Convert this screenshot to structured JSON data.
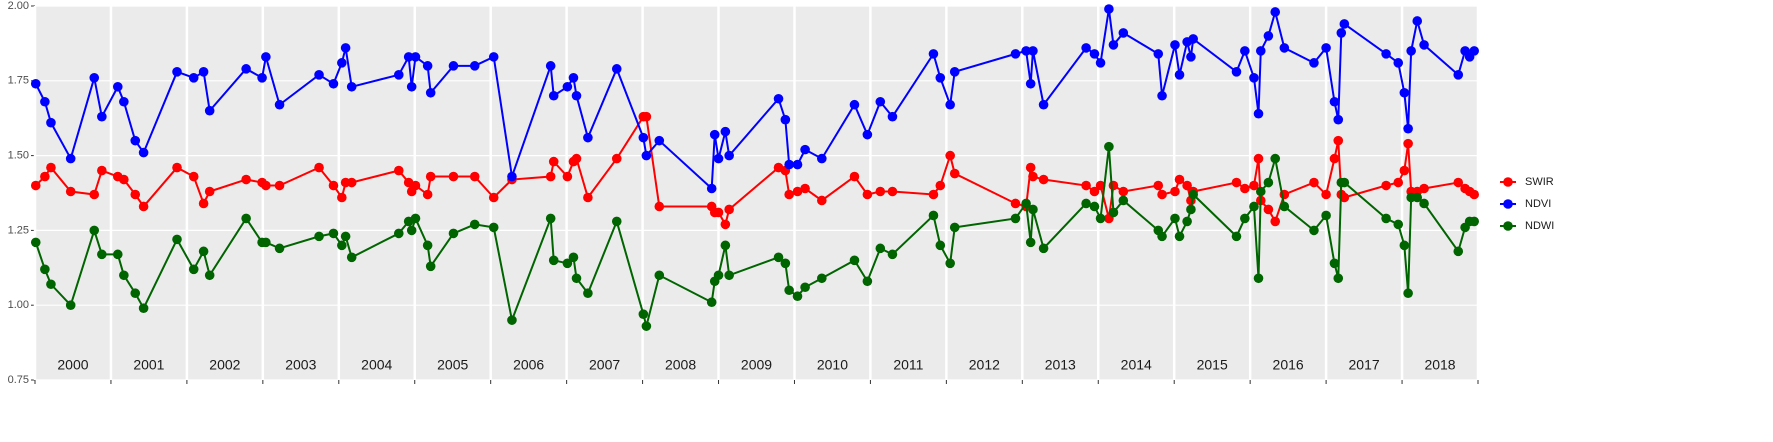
{
  "chart_data": {
    "type": "line",
    "x": [
      2000.01,
      2000.13,
      2000.21,
      2000.47,
      2000.78,
      2000.88,
      2001.09,
      2001.17,
      2001.32,
      2001.43,
      2001.87,
      2002.09,
      2002.22,
      2002.3,
      2002.78,
      2002.99,
      2003.04,
      2003.22,
      2003.74,
      2003.93,
      2004.04,
      2004.09,
      2004.17,
      2004.79,
      2004.92,
      2004.96,
      2005.01,
      2005.17,
      2005.21,
      2005.51,
      2005.79,
      2006.04,
      2006.28,
      2006.79,
      2006.83,
      2007.01,
      2007.09,
      2007.13,
      2007.28,
      2007.66,
      2008.01,
      2008.05,
      2008.22,
      2008.91,
      2008.95,
      2009.0,
      2009.09,
      2009.14,
      2009.79,
      2009.88,
      2009.93,
      2010.04,
      2010.14,
      2010.36,
      2010.79,
      2010.96,
      2011.13,
      2011.29,
      2011.83,
      2011.92,
      2012.05,
      2012.11,
      2012.91,
      2013.05,
      2013.11,
      2013.14,
      2013.28,
      2013.84,
      2013.95,
      2014.03,
      2014.14,
      2014.2,
      2014.33,
      2014.79,
      2014.84,
      2015.01,
      2015.07,
      2015.17,
      2015.22,
      2015.25,
      2015.82,
      2015.93,
      2016.05,
      2016.11,
      2016.14,
      2016.24,
      2016.33,
      2016.45,
      2016.84,
      2017.0,
      2017.11,
      2017.16,
      2017.2,
      2017.24,
      2017.79,
      2017.95,
      2018.03,
      2018.08,
      2018.12,
      2018.2,
      2018.29,
      2018.74,
      2018.83,
      2018.89,
      2018.95
    ],
    "series": [
      {
        "name": "SWIR",
        "color": "#ff0000",
        "values": [
          1.4,
          1.43,
          1.46,
          1.38,
          1.37,
          1.45,
          1.43,
          1.42,
          1.37,
          1.33,
          1.46,
          1.43,
          1.34,
          1.38,
          1.42,
          1.41,
          1.4,
          1.4,
          1.46,
          1.4,
          1.36,
          1.41,
          1.41,
          1.45,
          1.41,
          1.38,
          1.4,
          1.37,
          1.43,
          1.43,
          1.43,
          1.36,
          1.42,
          1.43,
          1.48,
          1.43,
          1.48,
          1.49,
          1.36,
          1.49,
          1.63,
          1.63,
          1.33,
          1.33,
          1.31,
          1.31,
          1.27,
          1.32,
          1.46,
          1.45,
          1.37,
          1.38,
          1.39,
          1.35,
          1.43,
          1.37,
          1.38,
          1.38,
          1.37,
          1.4,
          1.5,
          1.44,
          1.34,
          1.33,
          1.46,
          1.43,
          1.42,
          1.4,
          1.38,
          1.4,
          1.29,
          1.4,
          1.38,
          1.4,
          1.37,
          1.38,
          1.42,
          1.4,
          1.35,
          1.38,
          1.41,
          1.39,
          1.4,
          1.49,
          1.35,
          1.32,
          1.28,
          1.37,
          1.41,
          1.37,
          1.49,
          1.55,
          1.37,
          1.36,
          1.4,
          1.41,
          1.45,
          1.54,
          1.38,
          1.38,
          1.39,
          1.41,
          1.39,
          1.38,
          1.37
        ]
      },
      {
        "name": "NDVI",
        "color": "#0000ff",
        "values": [
          1.74,
          1.68,
          1.61,
          1.49,
          1.76,
          1.63,
          1.73,
          1.68,
          1.55,
          1.51,
          1.78,
          1.76,
          1.78,
          1.65,
          1.79,
          1.76,
          1.83,
          1.67,
          1.77,
          1.74,
          1.81,
          1.86,
          1.73,
          1.77,
          1.83,
          1.73,
          1.83,
          1.8,
          1.71,
          1.8,
          1.8,
          1.83,
          1.43,
          1.8,
          1.7,
          1.73,
          1.76,
          1.7,
          1.56,
          1.79,
          1.56,
          1.5,
          1.55,
          1.39,
          1.57,
          1.49,
          1.58,
          1.5,
          1.69,
          1.62,
          1.47,
          1.47,
          1.52,
          1.49,
          1.67,
          1.57,
          1.68,
          1.63,
          1.84,
          1.76,
          1.67,
          1.78,
          1.84,
          1.85,
          1.74,
          1.85,
          1.67,
          1.86,
          1.84,
          1.81,
          1.99,
          1.87,
          1.91,
          1.84,
          1.7,
          1.87,
          1.77,
          1.88,
          1.83,
          1.89,
          1.78,
          1.85,
          1.76,
          1.64,
          1.85,
          1.9,
          1.98,
          1.86,
          1.81,
          1.86,
          1.68,
          1.62,
          1.91,
          1.94,
          1.84,
          1.81,
          1.71,
          1.59,
          1.85,
          1.95,
          1.87,
          1.77,
          1.85,
          1.83,
          1.85
        ]
      },
      {
        "name": "NDWI",
        "color": "#006400",
        "values": [
          1.21,
          1.12,
          1.07,
          1.0,
          1.25,
          1.17,
          1.17,
          1.1,
          1.04,
          0.99,
          1.22,
          1.12,
          1.18,
          1.1,
          1.29,
          1.21,
          1.21,
          1.19,
          1.23,
          1.24,
          1.2,
          1.23,
          1.16,
          1.24,
          1.28,
          1.25,
          1.29,
          1.2,
          1.13,
          1.24,
          1.27,
          1.26,
          0.95,
          1.29,
          1.15,
          1.14,
          1.16,
          1.09,
          1.04,
          1.28,
          0.97,
          0.93,
          1.1,
          1.01,
          1.08,
          1.1,
          1.2,
          1.1,
          1.16,
          1.14,
          1.05,
          1.03,
          1.06,
          1.09,
          1.15,
          1.08,
          1.19,
          1.17,
          1.3,
          1.2,
          1.14,
          1.26,
          1.29,
          1.34,
          1.21,
          1.32,
          1.19,
          1.34,
          1.33,
          1.29,
          1.53,
          1.31,
          1.35,
          1.25,
          1.23,
          1.29,
          1.23,
          1.28,
          1.32,
          1.37,
          1.23,
          1.29,
          1.33,
          1.09,
          1.38,
          1.41,
          1.49,
          1.33,
          1.25,
          1.3,
          1.14,
          1.09,
          1.41,
          1.41,
          1.29,
          1.27,
          1.2,
          1.04,
          1.36,
          1.36,
          1.34,
          1.18,
          1.26,
          1.28,
          1.28
        ]
      }
    ],
    "xlim": [
      2000,
      2019
    ],
    "xticks": [
      2000,
      2001,
      2002,
      2003,
      2004,
      2005,
      2006,
      2007,
      2008,
      2009,
      2010,
      2011,
      2012,
      2013,
      2014,
      2015,
      2016,
      2017,
      2018,
      2019
    ],
    "year_labels": [
      "2000",
      "2001",
      "2002",
      "2003",
      "2004",
      "2005",
      "2006",
      "2007",
      "2008",
      "2009",
      "2010",
      "2011",
      "2012",
      "2013",
      "2014",
      "2015",
      "2016",
      "2017",
      "2018"
    ],
    "ylim": [
      0.75,
      2.0
    ],
    "yticks": [
      0.75,
      {
        "value": 1,
        "label": "1.00"
      },
      1.25,
      {
        "value": 1.5,
        "label": "1.50"
      },
      1.75,
      {
        "value": 2,
        "label": "2.00"
      }
    ],
    "grid": true,
    "legend": "right"
  }
}
